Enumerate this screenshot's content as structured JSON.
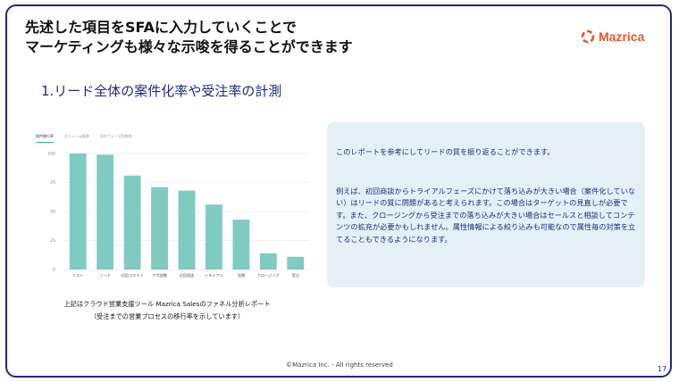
{
  "slide": {
    "headline_line1": "先述した項目をSFAに入力していくことで",
    "headline_line2": "マーケティングも様々な示唆を得ることができます",
    "section_title": "1.リード全体の案件化率や受注率の計測",
    "logo_text": "Mazrica",
    "caption_line1": "上記はクラウド営業支援ツール Mazrica Salesのファネル分析レポート",
    "caption_line2": "（受注までの営業プロセスの移行率を示しています）",
    "info_p1": "このレポートを参考にしてリードの質を振り返ることができます。",
    "info_p2": "例えば、初回商談からトライアルフェーズにかけて落ち込みが大きい場合（案件化していない）はリードの質に問題があると考えられます。この場合はターゲットの見直しが必要です。また、クロージングから受注までの落ち込みが大きい場合はセールスと相談してコンテンツの拡充が必要かもしれません。属性情報による絞り込みも可能なので属性毎の対策を立てることもできるようになります。",
    "footer": "©Mazrica Inc. - All rights reserved",
    "page_number": "17"
  },
  "tabs": [
    "案件移行率",
    "ボリューム推移",
    "案件フェーズ別推移"
  ],
  "colors": {
    "accent": "#1e2a78",
    "bar": "#7fcbc2",
    "logo": "#e8572a",
    "info_bg": "#e3f1f7"
  },
  "chart_data": {
    "type": "bar",
    "categories": [
      "リスト",
      "リード",
      "初回コネクト",
      "アポ調整",
      "初回面談",
      "トライアル",
      "見積",
      "クロージング",
      "受注"
    ],
    "values": [
      100,
      99,
      81,
      71,
      68,
      56,
      43,
      14,
      11
    ],
    "yticks": [
      0,
      25,
      50,
      75,
      100
    ],
    "ylim": [
      0,
      100
    ],
    "grid": true
  }
}
